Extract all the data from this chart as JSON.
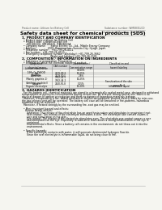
{
  "title": "Safety data sheet for chemical products (SDS)",
  "header_left": "Product name: Lithium Ion Battery Cell",
  "header_right": "Substance number: WM0831LCD\nEstablished / Revision: Dec.1 2019",
  "bg_color": "#f5f5f0",
  "section1_title": "1. PRODUCT AND COMPANY IDENTIFICATION",
  "section1_lines": [
    "  • Product name: Lithium Ion Battery Cell",
    "  • Product code: Cylindrical-type cell",
    "      IHR18650U, IHR18650L, IHR18650A",
    "  • Company name:      Sanyo Electric Co., Ltd., Mobile Energy Company",
    "  • Address:              2001  Kamimachen, Sumoto-City, Hyogo, Japan",
    "  • Telephone number:   +81-799-26-4111",
    "  • Fax number:  +81-799-26-4120",
    "  • Emergency telephone number (Weekday): +81-799-26-3662",
    "                                   (Night and holiday): +81-799-26-3101"
  ],
  "section2_title": "2. COMPOSITION / INFORMATION ON INGREDIENTS",
  "section2_lines": [
    "  • Substance or preparation: Preparation",
    "  • Information about the chemical nature of product:"
  ],
  "table_headers": [
    "Component\nchemical name",
    "CAS number",
    "Concentration /\nConcentration range",
    "Classification and\nhazard labeling"
  ],
  "table_rows": [
    [
      "Lithium cobalt oxide\n(LiMn-Co-PbNO4)",
      "-",
      "30-60%",
      ""
    ],
    [
      "Iron",
      "7439-89-6",
      "10-25%",
      ""
    ],
    [
      "Aluminum",
      "7429-90-5",
      "2-8%",
      ""
    ],
    [
      "Graphite\n(Mainly graphite-1)\n(Artificial graphite))",
      "7782-42-5\n7782-44-2",
      "10-25%",
      ""
    ],
    [
      "Copper",
      "7440-50-8",
      "5-15%",
      "Sensitization of the skin\ngroup No.2"
    ],
    [
      "Organic electrolyte",
      "-",
      "10-20%",
      "Inflammable liquid"
    ]
  ],
  "section3_title": "3. HAZARDS IDENTIFICATION",
  "section3_paras": [
    "  For this battery cell, chemical materials are stored in a hermetically sealed metal case, designed to withstand",
    "temperatures or pressures-concentrations during normal use. As a result, during normal use, there is no",
    "physical danger of ignition or explosion and there no danger of hazardous materials leakage.",
    "  However, if exposed to a fire, added mechanical shocks, decomposed, shorted electric wires by miss-use,",
    "the gas release vent will be operated. The battery cell case will be breached or fire-patterns, hazardous",
    "materials may be released.",
    "  Moreover, if heated strongly by the surrounding fire, soot gas may be emitted.",
    "",
    "  • Most important hazard and effects:",
    "    Human health effects:",
    "      Inhalation: The release of the electrolyte has an anesthesia action and stimulates in respiratory tract.",
    "      Skin contact: The release of the electrolyte stimulates a skin. The electrolyte skin contact causes a",
    "      sore and stimulation on the skin.",
    "      Eye contact: The release of the electrolyte stimulates eyes. The electrolyte eye contact causes a sore",
    "      and stimulation on the eye. Especially, a substance that causes a strong inflammation of the eye is",
    "      contained.",
    "      Environmental effects: Since a battery cell remains in the environment, do not throw out it into the",
    "      environment.",
    "",
    "  • Specific hazards:",
    "      If the electrolyte contacts with water, it will generate detrimental hydrogen fluoride.",
    "      Since the seal electrolyte is inflammable liquid, do not bring close to fire."
  ]
}
